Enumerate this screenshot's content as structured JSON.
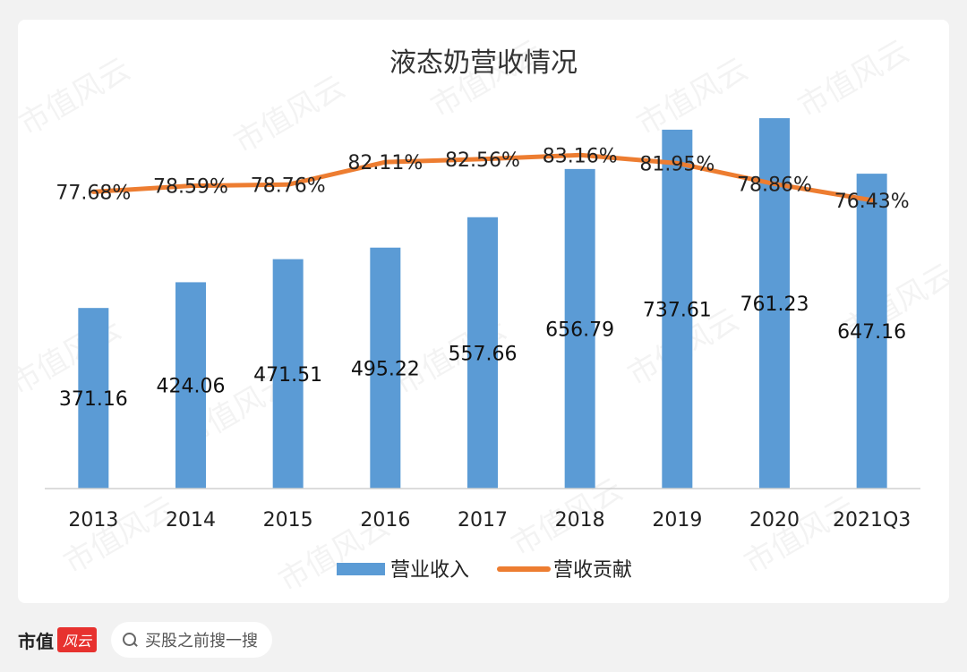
{
  "chart_data": {
    "type": "bar",
    "title": "液态奶营收情况",
    "categories": [
      "2013",
      "2014",
      "2015",
      "2016",
      "2017",
      "2018",
      "2019",
      "2020",
      "2021Q3"
    ],
    "series": [
      {
        "name": "营业收入",
        "chart_kind": "bar",
        "color": "#5b9bd5",
        "values": [
          371.16,
          424.06,
          471.51,
          495.22,
          557.66,
          656.79,
          737.61,
          761.23,
          647.16
        ],
        "labels": [
          "371.16",
          "424.06",
          "471.51",
          "495.22",
          "557.66",
          "656.79",
          "737.61",
          "761.23",
          "647.16"
        ]
      },
      {
        "name": "营收贡献",
        "chart_kind": "line",
        "color": "#ed7d31",
        "values": [
          77.68,
          78.59,
          78.76,
          82.11,
          82.56,
          83.16,
          81.95,
          78.86,
          76.43
        ],
        "labels": [
          "77.68%",
          "78.59%",
          "78.76%",
          "82.11%",
          "82.56%",
          "83.16%",
          "81.95%",
          "78.86%",
          "76.43%"
        ]
      }
    ],
    "ylim_bar": [
      0,
      800
    ],
    "ylim_line": [
      50,
      90
    ],
    "grid": false,
    "legend": "bottom"
  },
  "watermark": "市值风云",
  "footer": {
    "brand": "市值",
    "brand_badge": "风云",
    "search_placeholder": "买股之前搜一搜"
  }
}
